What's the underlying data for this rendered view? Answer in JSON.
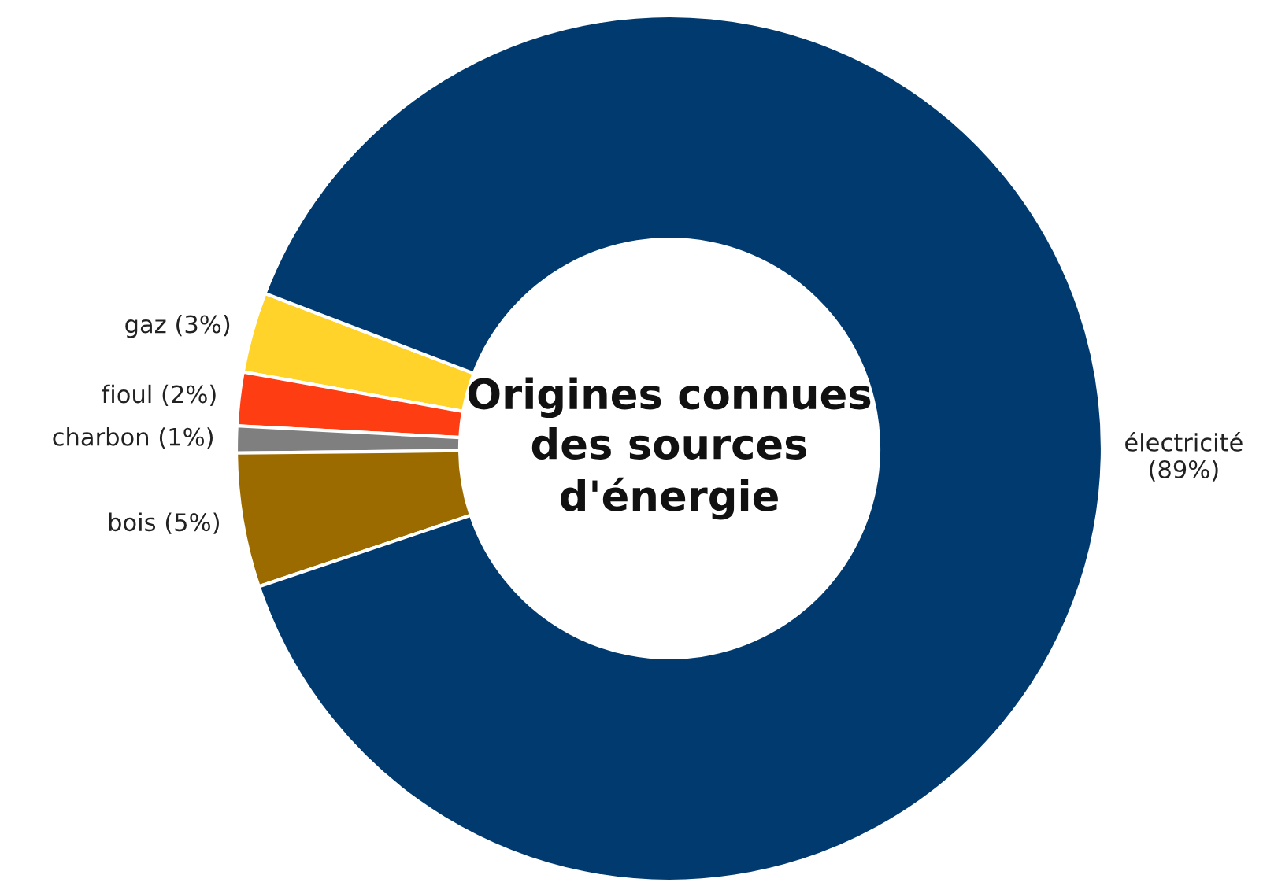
{
  "chart_data": {
    "type": "donut",
    "title": "Origines connues\ndes sources\nd'énergie",
    "categories": [
      "gaz",
      "fioul",
      "charbon",
      "bois",
      "électricité"
    ],
    "values": [
      3,
      2,
      1,
      5,
      89
    ],
    "value_labels": [
      "(3%)",
      "(2%)",
      "(1%)",
      "(5%)",
      "(89%)"
    ],
    "colors": [
      "#ffd32a",
      "#ff3d12",
      "#7f7f7f",
      "#9c6b00",
      "#003a6e"
    ],
    "legend": false
  }
}
